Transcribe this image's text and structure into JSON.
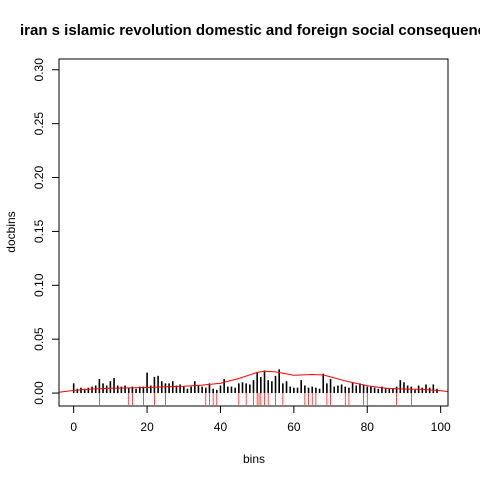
{
  "chart_data": {
    "type": "bar",
    "title": "iran s islamic revolution domestic and foreign social consequences",
    "xlabel": "bins",
    "ylabel": "docbins",
    "xlim": [
      -4,
      102
    ],
    "ylim": [
      -0.012,
      0.31
    ],
    "x_ticks": [
      0,
      20,
      40,
      60,
      80,
      100
    ],
    "y_ticks": [
      0.0,
      0.05,
      0.1,
      0.15,
      0.2,
      0.25,
      0.3
    ],
    "y_tick_labels": [
      "0.00",
      "0.05",
      "0.10",
      "0.15",
      "0.20",
      "0.25",
      "0.30"
    ],
    "grid": false,
    "series": [
      {
        "type": "bar",
        "color": "#000000",
        "x": [
          0,
          1,
          2,
          3,
          4,
          5,
          6,
          7,
          8,
          9,
          10,
          11,
          12,
          13,
          14,
          15,
          16,
          17,
          18,
          19,
          20,
          21,
          22,
          23,
          24,
          25,
          26,
          27,
          28,
          29,
          30,
          31,
          32,
          33,
          34,
          35,
          36,
          37,
          38,
          39,
          40,
          41,
          42,
          43,
          44,
          45,
          46,
          47,
          48,
          49,
          50,
          51,
          52,
          53,
          54,
          55,
          56,
          57,
          58,
          59,
          60,
          61,
          62,
          63,
          64,
          65,
          66,
          67,
          68,
          69,
          70,
          71,
          72,
          73,
          74,
          75,
          76,
          77,
          78,
          79,
          80,
          81,
          82,
          83,
          84,
          85,
          86,
          87,
          88,
          89,
          90,
          91,
          92,
          93,
          94,
          95,
          96,
          97,
          98,
          99
        ],
        "values": [
          0.009,
          0.004,
          0.005,
          0.004,
          0.005,
          0.006,
          0.007,
          0.013,
          0.009,
          0.007,
          0.011,
          0.014,
          0.007,
          0.006,
          0.007,
          0.005,
          0.006,
          0.004,
          0.006,
          0.006,
          0.019,
          0.007,
          0.015,
          0.016,
          0.011,
          0.009,
          0.009,
          0.011,
          0.007,
          0.008,
          0.006,
          0.004,
          0.006,
          0.011,
          0.007,
          0.006,
          0.005,
          0.009,
          0.004,
          0.003,
          0.007,
          0.013,
          0.006,
          0.006,
          0.005,
          0.009,
          0.01,
          0.009,
          0.008,
          0.012,
          0.019,
          0.015,
          0.021,
          0.012,
          0.011,
          0.016,
          0.022,
          0.009,
          0.011,
          0.006,
          0.005,
          0.005,
          0.012,
          0.007,
          0.005,
          0.006,
          0.005,
          0.004,
          0.018,
          0.009,
          0.013,
          0.006,
          0.007,
          0.008,
          0.006,
          0.005,
          0.01,
          0.007,
          0.009,
          0.008,
          0.006,
          0.006,
          0.005,
          0.004,
          0.006,
          0.005,
          0.004,
          0.004,
          0.006,
          0.012,
          0.01,
          0.007,
          0.006,
          0.003,
          0.007,
          0.005,
          0.008,
          0.005,
          0.008,
          0.004
        ]
      },
      {
        "type": "line",
        "color": "#ff0000",
        "x": [
          -4,
          0,
          5,
          10,
          15,
          20,
          25,
          30,
          35,
          40,
          45,
          50,
          52,
          55,
          60,
          65,
          68,
          70,
          75,
          80,
          85,
          90,
          95,
          100,
          102
        ],
        "values": [
          0.0008,
          0.0025,
          0.0038,
          0.0045,
          0.0048,
          0.0052,
          0.0058,
          0.0064,
          0.0074,
          0.0092,
          0.0135,
          0.0192,
          0.0203,
          0.0196,
          0.0165,
          0.0172,
          0.0168,
          0.015,
          0.0105,
          0.0068,
          0.0045,
          0.0038,
          0.0034,
          0.0022,
          0.0015
        ]
      },
      {
        "type": "rug",
        "color": "#ff0000",
        "x": [
          7,
          15,
          16,
          19,
          22,
          25,
          36,
          37,
          38,
          39,
          45,
          47,
          49,
          50,
          50.5,
          51,
          52,
          53,
          55,
          57,
          63,
          64,
          65,
          66,
          69,
          70,
          74,
          75,
          79,
          80,
          88,
          92
        ]
      }
    ]
  }
}
